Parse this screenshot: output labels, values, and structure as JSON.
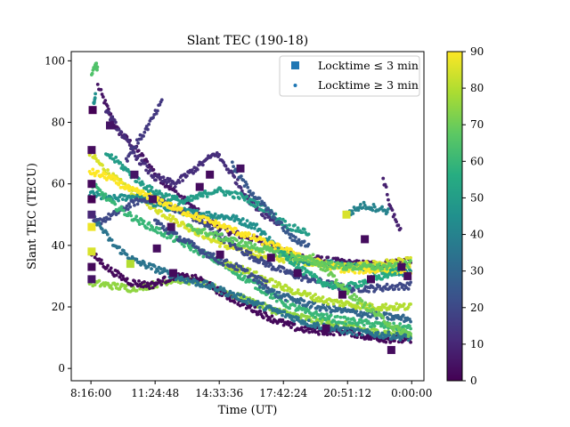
{
  "chart_data": {
    "type": "scatter",
    "title": "Slant TEC (190-18)",
    "xlabel": "Time (UT)",
    "ylabel": "Slant TEC (TECU)",
    "xlim_hours": [
      7.3,
      24.6
    ],
    "ylim": [
      -4,
      103
    ],
    "x_ticks": [
      {
        "hours": 8.2667,
        "label": "8:16:00"
      },
      {
        "hours": 11.4133,
        "label": "11:24:48"
      },
      {
        "hours": 14.56,
        "label": "14:33:36"
      },
      {
        "hours": 17.7067,
        "label": "17:42:24"
      },
      {
        "hours": 20.8533,
        "label": "20:51:12"
      },
      {
        "hours": 24.0,
        "label": "0:00:00"
      }
    ],
    "y_ticks": [
      0,
      20,
      40,
      60,
      80,
      100
    ],
    "colorbar": {
      "min": 0,
      "max": 90,
      "ticks": [
        0,
        10,
        20,
        30,
        40,
        50,
        60,
        70,
        80,
        90
      ],
      "colormap": "viridis"
    },
    "legend": {
      "position": "top-right",
      "entries": [
        {
          "label": "Locktime ≤ 3 min",
          "marker": "square",
          "color": "#1f77b4"
        },
        {
          "label": "Locktime ≥ 3 min",
          "marker": "dot",
          "color": "#1f77b4"
        }
      ]
    },
    "series": [
      {
        "c": 5,
        "pts": [
          [
            8.6,
            92
          ],
          [
            9.5,
            78
          ],
          [
            10.4,
            72
          ],
          [
            11.6,
            62
          ],
          [
            12.8,
            55
          ],
          [
            14.0,
            48
          ],
          [
            15.2,
            44
          ],
          [
            16.4,
            42
          ],
          [
            17.6,
            38
          ],
          [
            18.8,
            36
          ],
          [
            20.0,
            35
          ],
          [
            21.2,
            34
          ],
          [
            22.4,
            34
          ],
          [
            24.0,
            35
          ]
        ]
      },
      {
        "c": 85,
        "pts": [
          [
            8.2,
            70
          ],
          [
            9.2,
            63
          ],
          [
            10.2,
            58
          ],
          [
            11.4,
            52
          ],
          [
            12.4,
            48
          ],
          [
            13.6,
            44
          ],
          [
            14.8,
            40
          ],
          [
            16.0,
            38
          ],
          [
            17.2,
            36
          ],
          [
            18.4,
            35
          ],
          [
            19.8,
            34
          ],
          [
            21.0,
            33
          ],
          [
            22.2,
            34
          ],
          [
            24.0,
            35
          ]
        ]
      },
      {
        "c": 45,
        "pts": [
          [
            8.2,
            57
          ],
          [
            9.2,
            55
          ],
          [
            10.4,
            56
          ],
          [
            11.6,
            53
          ],
          [
            12.8,
            51
          ],
          [
            14.0,
            50
          ],
          [
            15.2,
            49
          ],
          [
            16.4,
            46
          ],
          [
            17.6,
            38
          ],
          [
            18.8,
            35
          ],
          [
            20.0,
            34
          ],
          [
            21.2,
            33
          ],
          [
            22.4,
            32
          ],
          [
            24.0,
            31
          ]
        ]
      },
      {
        "c": 20,
        "pts": [
          [
            8.4,
            47
          ],
          [
            9.4,
            50
          ],
          [
            10.4,
            54
          ],
          [
            11.4,
            56
          ],
          [
            12.4,
            52
          ],
          [
            13.6,
            48
          ],
          [
            14.8,
            42
          ],
          [
            16.0,
            37
          ],
          [
            17.2,
            33
          ],
          [
            18.4,
            30
          ],
          [
            19.6,
            28
          ],
          [
            20.8,
            26
          ],
          [
            22.0,
            26
          ],
          [
            24.0,
            27
          ]
        ]
      },
      {
        "c": 75,
        "pts": [
          [
            8.2,
            28
          ],
          [
            9.2,
            27
          ],
          [
            10.2,
            26
          ],
          [
            11.2,
            27
          ],
          [
            12.4,
            29
          ],
          [
            13.6,
            28
          ],
          [
            14.8,
            25
          ],
          [
            16.0,
            22
          ],
          [
            17.2,
            19
          ],
          [
            18.4,
            17
          ],
          [
            19.6,
            15
          ],
          [
            20.8,
            14
          ],
          [
            22.0,
            12
          ],
          [
            24.0,
            11
          ]
        ]
      },
      {
        "c": 2,
        "pts": [
          [
            8.2,
            38
          ],
          [
            9.2,
            32
          ],
          [
            10.2,
            28
          ],
          [
            11.2,
            27
          ],
          [
            12.4,
            30
          ],
          [
            13.6,
            29
          ],
          [
            14.8,
            24
          ],
          [
            16.0,
            20
          ],
          [
            17.2,
            16
          ],
          [
            18.4,
            13
          ],
          [
            19.6,
            12
          ],
          [
            20.8,
            12
          ],
          [
            22.0,
            10
          ],
          [
            24.0,
            9
          ]
        ]
      },
      {
        "c": 35,
        "pts": [
          [
            8.4,
            49
          ],
          [
            9.4,
            40
          ],
          [
            10.4,
            35
          ],
          [
            11.6,
            32
          ],
          [
            12.8,
            29
          ],
          [
            14.0,
            27
          ],
          [
            15.2,
            24
          ],
          [
            16.4,
            21
          ],
          [
            17.6,
            18
          ],
          [
            18.8,
            15
          ],
          [
            20.0,
            13
          ],
          [
            21.2,
            12
          ],
          [
            22.4,
            11
          ],
          [
            24.0,
            10
          ]
        ]
      },
      {
        "c": 60,
        "pts": [
          [
            8.3,
            60
          ],
          [
            9.4,
            53
          ],
          [
            10.6,
            48
          ],
          [
            11.8,
            44
          ],
          [
            13.0,
            40
          ],
          [
            14.2,
            36
          ],
          [
            15.4,
            31
          ],
          [
            16.6,
            26
          ],
          [
            17.8,
            21
          ],
          [
            19.0,
            18
          ],
          [
            20.2,
            16
          ],
          [
            21.4,
            15
          ],
          [
            22.6,
            14
          ],
          [
            24.0,
            13
          ]
        ]
      },
      {
        "c": 90,
        "pts": [
          [
            8.2,
            64
          ],
          [
            9.2,
            62
          ],
          [
            10.2,
            58
          ],
          [
            11.2,
            56
          ],
          [
            12.4,
            52
          ],
          [
            13.6,
            49
          ],
          [
            14.8,
            46
          ],
          [
            16.0,
            43
          ],
          [
            17.2,
            40
          ],
          [
            18.4,
            37
          ],
          [
            19.6,
            34
          ],
          [
            20.8,
            32
          ],
          [
            22.0,
            32
          ],
          [
            24.0,
            32
          ]
        ]
      },
      {
        "c": 12,
        "pts": [
          [
            9.0,
            84
          ],
          [
            9.8,
            76
          ],
          [
            10.6,
            68
          ],
          [
            11.4,
            62
          ],
          [
            12.4,
            60
          ],
          [
            13.6,
            66
          ],
          [
            14.4,
            70
          ],
          [
            15.2,
            63
          ],
          [
            16.0,
            55
          ],
          [
            16.8,
            50
          ],
          [
            17.6,
            47
          ]
        ]
      },
      {
        "c": 15,
        "pts": [
          [
            10.0,
            68
          ],
          [
            11.0,
            78
          ],
          [
            11.8,
            87
          ]
        ]
      },
      {
        "c": 50,
        "pts": [
          [
            9.0,
            70
          ],
          [
            9.6,
            67
          ],
          [
            10.4,
            62
          ],
          [
            11.2,
            58
          ],
          [
            12.0,
            56
          ],
          [
            12.8,
            54
          ],
          [
            13.6,
            56
          ],
          [
            14.4,
            58
          ],
          [
            15.6,
            56
          ],
          [
            16.8,
            52
          ],
          [
            18.0,
            46
          ],
          [
            19.0,
            44
          ]
        ]
      },
      {
        "c": 25,
        "pts": [
          [
            15.2,
            66
          ],
          [
            15.8,
            60
          ],
          [
            16.6,
            54
          ],
          [
            17.4,
            48
          ],
          [
            18.2,
            42
          ],
          [
            19.0,
            40
          ]
        ]
      },
      {
        "c": 40,
        "pts": [
          [
            20.8,
            50
          ],
          [
            21.6,
            53
          ],
          [
            22.4,
            52
          ],
          [
            22.9,
            51
          ]
        ]
      },
      {
        "c": 8,
        "pts": [
          [
            22.6,
            62
          ],
          [
            22.9,
            54
          ],
          [
            23.2,
            48
          ],
          [
            23.5,
            44
          ]
        ]
      },
      {
        "c": 68,
        "pts": [
          [
            13.0,
            46
          ],
          [
            14.0,
            44
          ],
          [
            15.0,
            42
          ],
          [
            16.0,
            40
          ],
          [
            17.2,
            38
          ],
          [
            18.4,
            36
          ],
          [
            19.6,
            34
          ],
          [
            20.8,
            33
          ],
          [
            22.0,
            33
          ],
          [
            23.2,
            33
          ],
          [
            24.0,
            34
          ]
        ]
      },
      {
        "c": 55,
        "pts": [
          [
            17.6,
            38
          ],
          [
            18.6,
            32
          ],
          [
            19.6,
            28
          ],
          [
            20.6,
            26
          ],
          [
            21.6,
            28
          ],
          [
            22.6,
            30
          ],
          [
            23.4,
            32
          ]
        ]
      },
      {
        "c": 30,
        "pts": [
          [
            16.4,
            28
          ],
          [
            17.4,
            24
          ],
          [
            18.4,
            22
          ],
          [
            19.4,
            20
          ],
          [
            20.4,
            19
          ],
          [
            21.4,
            18
          ],
          [
            22.6,
            17
          ],
          [
            24.0,
            16
          ]
        ]
      },
      {
        "c": 80,
        "pts": [
          [
            14.8,
            34
          ],
          [
            15.8,
            32
          ],
          [
            16.8,
            29
          ],
          [
            17.8,
            26
          ],
          [
            18.8,
            24
          ],
          [
            19.8,
            22
          ],
          [
            20.8,
            21
          ],
          [
            22.0,
            20
          ],
          [
            23.2,
            20
          ],
          [
            24.0,
            20
          ]
        ]
      },
      {
        "c": 65,
        "pts": [
          [
            8.3,
            95
          ],
          [
            8.5,
            100
          ],
          [
            8.6,
            97
          ]
        ]
      },
      {
        "c": 45,
        "pts": [
          [
            8.4,
            86
          ],
          [
            8.5,
            90
          ]
        ]
      },
      {
        "c": 70,
        "pts": [
          [
            19.0,
            37
          ],
          [
            19.6,
            33
          ],
          [
            20.2,
            29
          ],
          [
            20.8,
            25
          ],
          [
            21.4,
            22
          ],
          [
            22.0,
            19
          ],
          [
            22.6,
            16
          ],
          [
            23.2,
            13
          ],
          [
            24.0,
            11
          ]
        ]
      },
      {
        "c": 22,
        "pts": [
          [
            11.4,
            48
          ],
          [
            12.2,
            44
          ],
          [
            13.0,
            41
          ],
          [
            13.8,
            38
          ],
          [
            14.6,
            35
          ],
          [
            15.4,
            33
          ],
          [
            16.2,
            30
          ],
          [
            17.0,
            27
          ]
        ]
      }
    ],
    "squares": [
      {
        "x": 8.35,
        "y": 84,
        "c": 0
      },
      {
        "x": 8.3,
        "y": 71,
        "c": 3
      },
      {
        "x": 8.3,
        "y": 60,
        "c": 2
      },
      {
        "x": 8.3,
        "y": 55,
        "c": 0
      },
      {
        "x": 8.3,
        "y": 50,
        "c": 10
      },
      {
        "x": 8.3,
        "y": 46,
        "c": 88
      },
      {
        "x": 8.3,
        "y": 38,
        "c": 85
      },
      {
        "x": 8.3,
        "y": 33,
        "c": 2
      },
      {
        "x": 8.3,
        "y": 29,
        "c": 5
      },
      {
        "x": 9.2,
        "y": 79,
        "c": 5
      },
      {
        "x": 10.4,
        "y": 63,
        "c": 5
      },
      {
        "x": 11.3,
        "y": 55,
        "c": 4
      },
      {
        "x": 11.5,
        "y": 39,
        "c": 3
      },
      {
        "x": 12.3,
        "y": 31,
        "c": 2
      },
      {
        "x": 12.2,
        "y": 46,
        "c": 4
      },
      {
        "x": 13.6,
        "y": 59,
        "c": 3
      },
      {
        "x": 14.1,
        "y": 63,
        "c": 3
      },
      {
        "x": 14.6,
        "y": 37,
        "c": 3
      },
      {
        "x": 15.6,
        "y": 65,
        "c": 4
      },
      {
        "x": 17.1,
        "y": 36,
        "c": 3
      },
      {
        "x": 18.4,
        "y": 31,
        "c": 3
      },
      {
        "x": 19.8,
        "y": 13,
        "c": 2
      },
      {
        "x": 20.6,
        "y": 24,
        "c": 2
      },
      {
        "x": 20.8,
        "y": 50,
        "c": 85
      },
      {
        "x": 21.7,
        "y": 42,
        "c": 3
      },
      {
        "x": 22.0,
        "y": 29,
        "c": 2
      },
      {
        "x": 23.0,
        "y": 6,
        "c": 3
      },
      {
        "x": 23.5,
        "y": 33,
        "c": 3
      },
      {
        "x": 23.8,
        "y": 30,
        "c": 3
      },
      {
        "x": 10.2,
        "y": 34,
        "c": 80
      }
    ]
  }
}
